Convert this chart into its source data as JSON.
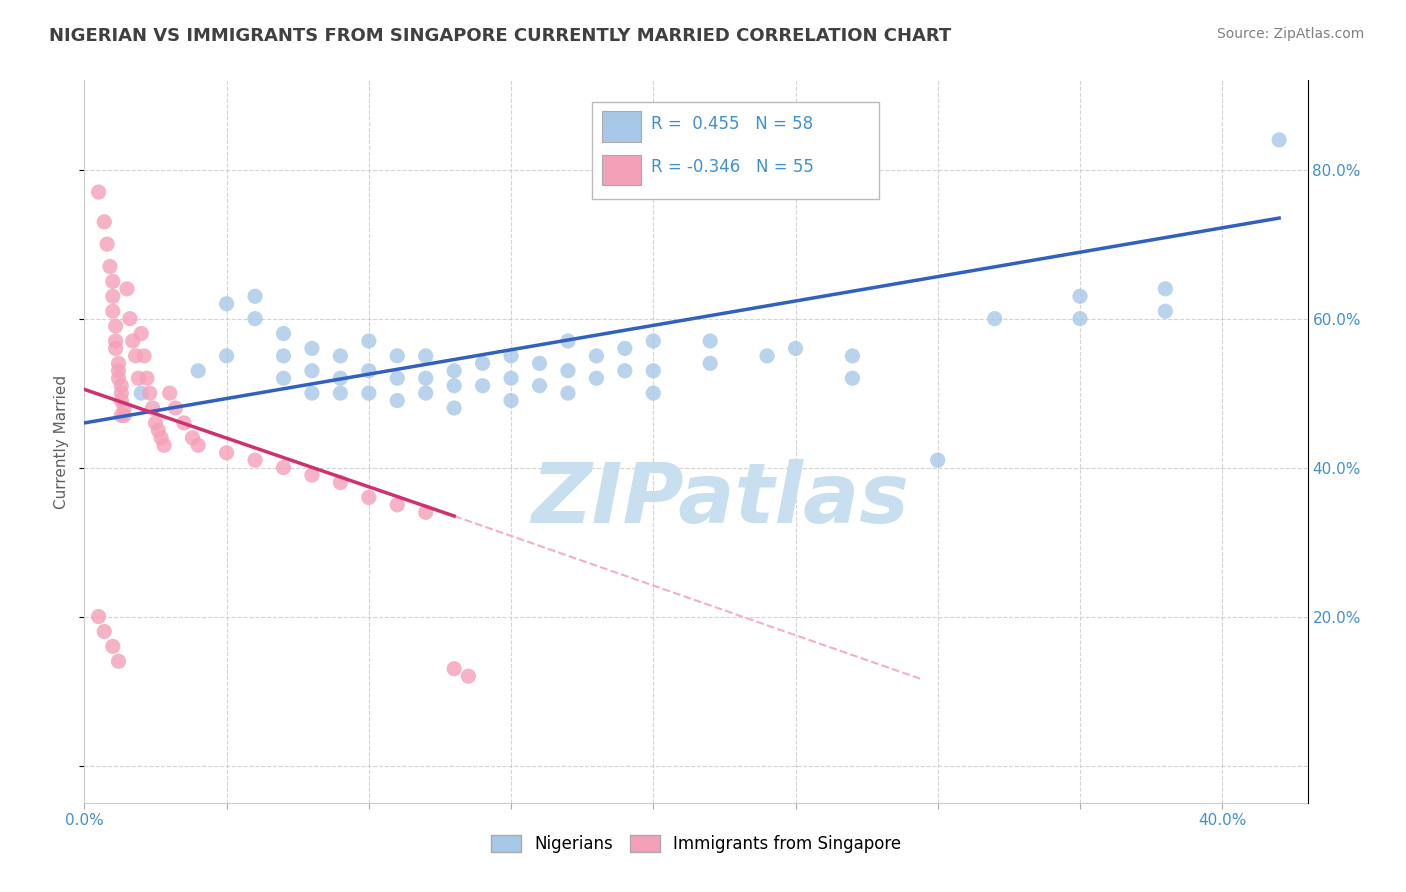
{
  "title": "NIGERIAN VS IMMIGRANTS FROM SINGAPORE CURRENTLY MARRIED CORRELATION CHART",
  "source_text": "Source: ZipAtlas.com",
  "ylabel": "Currently Married",
  "watermark": "ZIPatlas",
  "xmin": 0.0,
  "xmax": 0.43,
  "ymin": -0.05,
  "ymax": 0.92,
  "x_ticks": [
    0.0,
    0.05,
    0.1,
    0.15,
    0.2,
    0.25,
    0.3,
    0.35,
    0.4
  ],
  "y_ticks": [
    0.0,
    0.2,
    0.4,
    0.6,
    0.8
  ],
  "y_tick_labels_right": [
    "",
    "20.0%",
    "40.0%",
    "60.0%",
    "80.0%"
  ],
  "blue_color": "#a8c8e8",
  "pink_color": "#f4a0b8",
  "blue_line_color": "#3060c0",
  "pink_line_color": "#d03070",
  "pink_dashed_color": "#f0b0c8",
  "blue_scatter": [
    [
      0.02,
      0.5
    ],
    [
      0.04,
      0.53
    ],
    [
      0.05,
      0.55
    ],
    [
      0.05,
      0.62
    ],
    [
      0.06,
      0.63
    ],
    [
      0.06,
      0.6
    ],
    [
      0.07,
      0.58
    ],
    [
      0.07,
      0.55
    ],
    [
      0.07,
      0.52
    ],
    [
      0.08,
      0.56
    ],
    [
      0.08,
      0.53
    ],
    [
      0.08,
      0.5
    ],
    [
      0.09,
      0.55
    ],
    [
      0.09,
      0.52
    ],
    [
      0.09,
      0.5
    ],
    [
      0.1,
      0.57
    ],
    [
      0.1,
      0.53
    ],
    [
      0.1,
      0.5
    ],
    [
      0.11,
      0.55
    ],
    [
      0.11,
      0.52
    ],
    [
      0.11,
      0.49
    ],
    [
      0.12,
      0.55
    ],
    [
      0.12,
      0.52
    ],
    [
      0.12,
      0.5
    ],
    [
      0.13,
      0.53
    ],
    [
      0.13,
      0.51
    ],
    [
      0.13,
      0.48
    ],
    [
      0.14,
      0.54
    ],
    [
      0.14,
      0.51
    ],
    [
      0.15,
      0.55
    ],
    [
      0.15,
      0.52
    ],
    [
      0.15,
      0.49
    ],
    [
      0.16,
      0.54
    ],
    [
      0.16,
      0.51
    ],
    [
      0.17,
      0.57
    ],
    [
      0.17,
      0.53
    ],
    [
      0.17,
      0.5
    ],
    [
      0.18,
      0.55
    ],
    [
      0.18,
      0.52
    ],
    [
      0.19,
      0.56
    ],
    [
      0.19,
      0.53
    ],
    [
      0.2,
      0.57
    ],
    [
      0.2,
      0.53
    ],
    [
      0.2,
      0.5
    ],
    [
      0.22,
      0.57
    ],
    [
      0.22,
      0.54
    ],
    [
      0.24,
      0.55
    ],
    [
      0.25,
      0.56
    ],
    [
      0.27,
      0.55
    ],
    [
      0.27,
      0.52
    ],
    [
      0.3,
      0.41
    ],
    [
      0.32,
      0.6
    ],
    [
      0.35,
      0.63
    ],
    [
      0.35,
      0.6
    ],
    [
      0.38,
      0.64
    ],
    [
      0.38,
      0.61
    ],
    [
      0.42,
      0.84
    ]
  ],
  "pink_scatter": [
    [
      0.005,
      0.77
    ],
    [
      0.007,
      0.73
    ],
    [
      0.008,
      0.7
    ],
    [
      0.009,
      0.67
    ],
    [
      0.01,
      0.65
    ],
    [
      0.01,
      0.63
    ],
    [
      0.01,
      0.61
    ],
    [
      0.011,
      0.59
    ],
    [
      0.011,
      0.57
    ],
    [
      0.011,
      0.56
    ],
    [
      0.012,
      0.54
    ],
    [
      0.012,
      0.53
    ],
    [
      0.012,
      0.52
    ],
    [
      0.013,
      0.51
    ],
    [
      0.013,
      0.5
    ],
    [
      0.013,
      0.49
    ],
    [
      0.014,
      0.48
    ],
    [
      0.014,
      0.47
    ],
    [
      0.015,
      0.64
    ],
    [
      0.016,
      0.6
    ],
    [
      0.017,
      0.57
    ],
    [
      0.018,
      0.55
    ],
    [
      0.019,
      0.52
    ],
    [
      0.02,
      0.58
    ],
    [
      0.021,
      0.55
    ],
    [
      0.022,
      0.52
    ],
    [
      0.023,
      0.5
    ],
    [
      0.024,
      0.48
    ],
    [
      0.025,
      0.46
    ],
    [
      0.026,
      0.45
    ],
    [
      0.027,
      0.44
    ],
    [
      0.028,
      0.43
    ],
    [
      0.03,
      0.5
    ],
    [
      0.032,
      0.48
    ],
    [
      0.035,
      0.46
    ],
    [
      0.038,
      0.44
    ],
    [
      0.04,
      0.43
    ],
    [
      0.05,
      0.42
    ],
    [
      0.06,
      0.41
    ],
    [
      0.07,
      0.4
    ],
    [
      0.08,
      0.39
    ],
    [
      0.09,
      0.38
    ],
    [
      0.1,
      0.36
    ],
    [
      0.11,
      0.35
    ],
    [
      0.12,
      0.34
    ],
    [
      0.013,
      0.47
    ],
    [
      0.005,
      0.2
    ],
    [
      0.007,
      0.18
    ],
    [
      0.01,
      0.16
    ],
    [
      0.012,
      0.14
    ],
    [
      0.13,
      0.13
    ],
    [
      0.135,
      0.12
    ]
  ],
  "blue_trendline": [
    [
      0.0,
      0.46
    ],
    [
      0.42,
      0.735
    ]
  ],
  "pink_solid_trendline": [
    [
      0.0,
      0.505
    ],
    [
      0.13,
      0.335
    ]
  ],
  "pink_dashed_trendline": [
    [
      0.13,
      0.335
    ],
    [
      0.295,
      0.115
    ]
  ],
  "background_color": "#ffffff",
  "grid_color": "#c8c8c8",
  "title_color": "#404040",
  "source_color": "#808080",
  "watermark_color": "#c8dff0",
  "axis_label_color": "#4090d0",
  "title_fontsize": 13,
  "source_fontsize": 10,
  "ylabel_fontsize": 11,
  "tick_fontsize": 11,
  "legend_fontsize": 12,
  "watermark_fontsize": 60
}
